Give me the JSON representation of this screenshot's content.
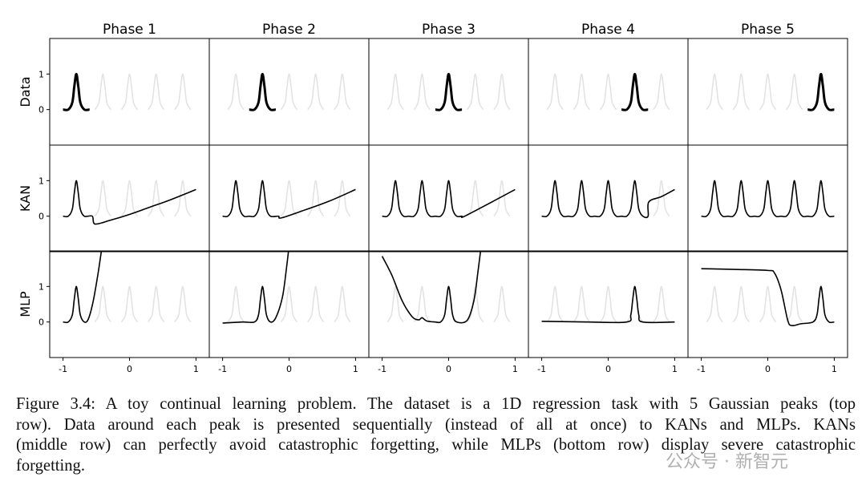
{
  "figure": {
    "columns": [
      "Phase 1",
      "Phase 2",
      "Phase 3",
      "Phase 4",
      "Phase 5"
    ],
    "xlim": [
      -1.2,
      1.2
    ],
    "ylim": [
      -1,
      2
    ],
    "xticks": [
      -1,
      0,
      1
    ],
    "yticks": [
      0,
      1
    ],
    "reference": {
      "x": [
        -0.92,
        -0.86,
        -0.83,
        -0.8,
        -0.77,
        -0.74,
        -0.68,
        -0.6,
        -0.52,
        -0.46,
        -0.43,
        -0.4,
        -0.37,
        -0.34,
        -0.28,
        -0.2,
        -0.12,
        -0.06,
        -0.03,
        0,
        0.03,
        0.06,
        0.12,
        0.2,
        0.28,
        0.34,
        0.37,
        0.4,
        0.43,
        0.46,
        0.52,
        0.6,
        0.68,
        0.74,
        0.77,
        0.8,
        0.83,
        0.86,
        0.92
      ],
      "y": [
        0,
        0.2,
        0.65,
        1,
        0.65,
        0.2,
        0,
        null,
        0,
        0.2,
        0.65,
        1,
        0.65,
        0.2,
        0,
        null,
        0,
        0.2,
        0.65,
        1,
        0.65,
        0.2,
        0,
        null,
        0,
        0.2,
        0.65,
        1,
        0.65,
        0.2,
        0,
        null,
        0,
        0.2,
        0.65,
        1,
        0.65,
        0.2,
        0
      ]
    },
    "rows": [
      {
        "label": "Data",
        "panels": [
          {
            "x": [
              -1,
              -0.92,
              -0.86,
              -0.83,
              -0.8,
              -0.77,
              -0.74,
              -0.68,
              -0.6
            ],
            "y": [
              0,
              0,
              0.2,
              0.65,
              1,
              0.65,
              0.2,
              0,
              0
            ]
          },
          {
            "x": [
              -0.6,
              -0.52,
              -0.46,
              -0.43,
              -0.4,
              -0.37,
              -0.34,
              -0.28,
              -0.2
            ],
            "y": [
              0,
              0,
              0.2,
              0.65,
              1,
              0.65,
              0.2,
              0,
              0
            ]
          },
          {
            "x": [
              -0.2,
              -0.12,
              -0.06,
              -0.03,
              0,
              0.03,
              0.06,
              0.12,
              0.2
            ],
            "y": [
              0,
              0,
              0.2,
              0.65,
              1,
              0.65,
              0.2,
              0,
              0
            ]
          },
          {
            "x": [
              0.2,
              0.28,
              0.34,
              0.37,
              0.4,
              0.43,
              0.46,
              0.52,
              0.6
            ],
            "y": [
              0,
              0,
              0.2,
              0.65,
              1,
              0.65,
              0.2,
              0,
              0
            ]
          },
          {
            "x": [
              0.6,
              0.68,
              0.74,
              0.77,
              0.8,
              0.83,
              0.86,
              0.92,
              1
            ],
            "y": [
              0,
              0,
              0.2,
              0.65,
              1,
              0.65,
              0.2,
              0,
              0
            ]
          }
        ]
      },
      {
        "label": "KAN",
        "panels": [
          {
            "x": [
              -1,
              -0.92,
              -0.86,
              -0.83,
              -0.8,
              -0.77,
              -0.74,
              -0.68,
              -0.56,
              -0.52,
              -0.3,
              0,
              0.3,
              0.6,
              1
            ],
            "y": [
              0,
              0,
              0.2,
              0.65,
              1,
              0.65,
              0.2,
              0,
              0,
              -0.22,
              -0.12,
              0.05,
              0.25,
              0.45,
              0.75
            ]
          },
          {
            "x": [
              -1,
              -0.92,
              -0.86,
              -0.83,
              -0.8,
              -0.77,
              -0.74,
              -0.68,
              -0.6,
              -0.52,
              -0.46,
              -0.43,
              -0.4,
              -0.37,
              -0.34,
              -0.28,
              -0.16,
              -0.12,
              0.2,
              0.6,
              1
            ],
            "y": [
              0,
              0,
              0.2,
              0.65,
              1,
              0.65,
              0.2,
              0,
              0,
              0,
              0.2,
              0.65,
              1,
              0.65,
              0.2,
              0,
              0,
              -0.05,
              0.15,
              0.42,
              0.75
            ]
          },
          {
            "x": [
              -1,
              -0.92,
              -0.86,
              -0.83,
              -0.8,
              -0.77,
              -0.74,
              -0.68,
              -0.6,
              -0.52,
              -0.46,
              -0.43,
              -0.4,
              -0.37,
              -0.34,
              -0.28,
              -0.2,
              -0.12,
              -0.06,
              -0.03,
              0,
              0.03,
              0.06,
              0.12,
              0.2,
              0.22,
              0.5,
              1
            ],
            "y": [
              0,
              0,
              0.2,
              0.65,
              1,
              0.65,
              0.2,
              0,
              0,
              0,
              0.2,
              0.65,
              1,
              0.65,
              0.2,
              0,
              0,
              0,
              0.2,
              0.65,
              1,
              0.65,
              0.2,
              0,
              0,
              -0.02,
              0.25,
              0.75
            ]
          },
          {
            "x": [
              -1,
              -0.92,
              -0.86,
              -0.83,
              -0.8,
              -0.77,
              -0.74,
              -0.68,
              -0.6,
              -0.52,
              -0.46,
              -0.43,
              -0.4,
              -0.37,
              -0.34,
              -0.28,
              -0.2,
              -0.12,
              -0.06,
              -0.03,
              0,
              0.03,
              0.06,
              0.12,
              0.2,
              0.28,
              0.34,
              0.37,
              0.4,
              0.43,
              0.46,
              0.52,
              0.6,
              0.61,
              0.8,
              1
            ],
            "y": [
              0,
              0,
              0.2,
              0.65,
              1,
              0.65,
              0.2,
              0,
              0,
              0,
              0.2,
              0.65,
              1,
              0.65,
              0.2,
              0,
              0,
              0,
              0.2,
              0.65,
              1,
              0.65,
              0.2,
              0,
              0,
              0,
              0.2,
              0.65,
              1,
              0.65,
              0.2,
              0,
              0,
              0.4,
              0.55,
              0.75
            ]
          },
          {
            "x": [
              -1,
              -0.92,
              -0.86,
              -0.83,
              -0.8,
              -0.77,
              -0.74,
              -0.68,
              -0.6,
              -0.52,
              -0.46,
              -0.43,
              -0.4,
              -0.37,
              -0.34,
              -0.28,
              -0.2,
              -0.12,
              -0.06,
              -0.03,
              0,
              0.03,
              0.06,
              0.12,
              0.2,
              0.28,
              0.34,
              0.37,
              0.4,
              0.43,
              0.46,
              0.52,
              0.6,
              0.68,
              0.74,
              0.77,
              0.8,
              0.83,
              0.86,
              0.92,
              1
            ],
            "y": [
              0,
              0,
              0.2,
              0.65,
              1,
              0.65,
              0.2,
              0,
              0,
              0,
              0.2,
              0.65,
              1,
              0.65,
              0.2,
              0,
              0,
              0,
              0.2,
              0.65,
              1,
              0.65,
              0.2,
              0,
              0,
              0,
              0.2,
              0.65,
              1,
              0.65,
              0.2,
              0,
              0,
              0,
              0.2,
              0.65,
              1,
              0.65,
              0.2,
              0,
              0
            ]
          }
        ]
      },
      {
        "label": "MLP",
        "panels": [
          {
            "x": [
              -1,
              -0.92,
              -0.86,
              -0.83,
              -0.8,
              -0.77,
              -0.74,
              -0.68,
              -0.62,
              -0.55,
              -0.47,
              -0.4
            ],
            "y": [
              0,
              0,
              0.2,
              0.65,
              1,
              0.65,
              0.2,
              0,
              0.08,
              0.55,
              1.4,
              2.3
            ]
          },
          {
            "x": [
              -1,
              -0.7,
              -0.52,
              -0.46,
              -0.43,
              -0.4,
              -0.37,
              -0.34,
              -0.28,
              -0.2,
              -0.1,
              -0.04,
              0.01
            ],
            "y": [
              -0.03,
              0,
              0,
              0.2,
              0.65,
              1,
              0.65,
              0.2,
              0,
              0.12,
              0.7,
              1.5,
              2.3
            ]
          },
          {
            "x": [
              -1,
              -0.85,
              -0.7,
              -0.55,
              -0.45,
              -0.4,
              -0.33,
              -0.2,
              -0.12,
              -0.06,
              -0.03,
              0,
              0.03,
              0.06,
              0.12,
              0.28,
              0.38,
              0.44,
              0.5
            ],
            "y": [
              1.85,
              1.3,
              0.6,
              0.15,
              0.06,
              0.12,
              0.03,
              0,
              0,
              0.2,
              0.65,
              1,
              0.65,
              0.2,
              0,
              0.05,
              0.6,
              1.4,
              2.3
            ]
          },
          {
            "x": [
              -1,
              -0.3,
              0.28,
              0.34,
              0.37,
              0.4,
              0.43,
              0.46,
              0.52,
              1
            ],
            "y": [
              0.02,
              0,
              0,
              0.2,
              0.65,
              1,
              0.65,
              0.2,
              0,
              0
            ]
          },
          {
            "x": [
              -1,
              -0.5,
              0,
              0.1,
              0.2,
              0.3,
              0.36,
              0.5,
              0.68,
              0.74,
              0.77,
              0.8,
              0.83,
              0.86,
              0.92,
              1
            ],
            "y": [
              1.5,
              1.48,
              1.45,
              1.38,
              0.9,
              0.05,
              -0.1,
              -0.05,
              0,
              0.2,
              0.65,
              1,
              0.65,
              0.2,
              0,
              0
            ]
          }
        ]
      }
    ]
  },
  "caption": {
    "lines": [
      "Figure 3.4: A toy continual learning problem. The dataset is a 1D regression task with 5 Gaussian peaks (top",
      "row).  Data around each peak is presented sequentially (instead of all at once) to KANs and MLPs.  KANs",
      "(middle row) can perfectly avoid catastrophic forgetting, while MLPs (bottom row) display severe catastrophic",
      "forgetting."
    ]
  },
  "watermark": "公众号 · 新智元"
}
